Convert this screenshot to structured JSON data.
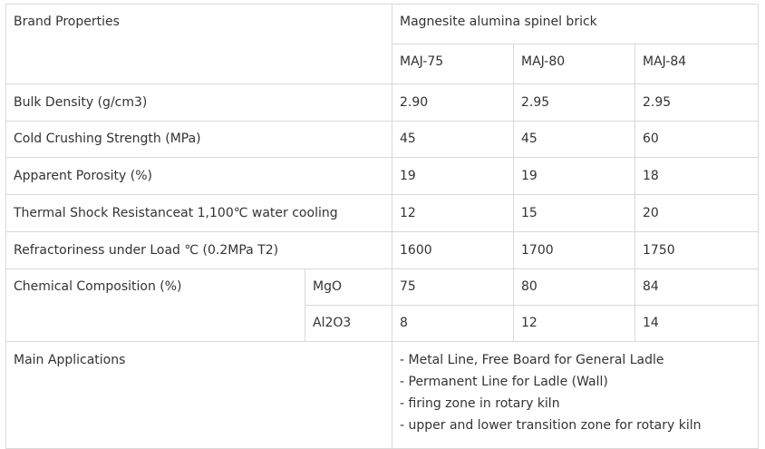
{
  "table": {
    "header": {
      "brand_properties": "Brand Properties",
      "product_name": "Magnesite alumina spinel brick",
      "grades": [
        "MAJ-75",
        "MAJ-80",
        "MAJ-84"
      ]
    },
    "rows": [
      {
        "property": "Bulk Density (g/cm3)",
        "values": [
          "2.90",
          "2.95",
          "2.95"
        ]
      },
      {
        "property": "Cold Crushing Strength (MPa)",
        "values": [
          "45",
          "45",
          "60"
        ]
      },
      {
        "property": "Apparent Porosity (%)",
        "values": [
          "19",
          "19",
          "18"
        ]
      },
      {
        "property": "Thermal Shock Resistanceat 1,100℃ water cooling",
        "values": [
          "12",
          "15",
          "20"
        ]
      },
      {
        "property": "Refractoriness under Load ℃ (0.2MPa T2)",
        "values": [
          "1600",
          "1700",
          "1750"
        ]
      }
    ],
    "chemical": {
      "label": "Chemical Composition (%)",
      "rows": [
        {
          "component": "MgO",
          "values": [
            "75",
            "80",
            "84"
          ]
        },
        {
          "component": "Al2O3",
          "values": [
            "8",
            "12",
            "14"
          ]
        }
      ]
    },
    "applications": {
      "label": "Main Applications",
      "items": [
        "- Metal Line, Free Board for General Ladle",
        "- Permanent Line for Ladle (Wall)",
        "- firing zone in rotary kiln",
        "- upper and lower transition zone for rotary kiln"
      ]
    }
  }
}
